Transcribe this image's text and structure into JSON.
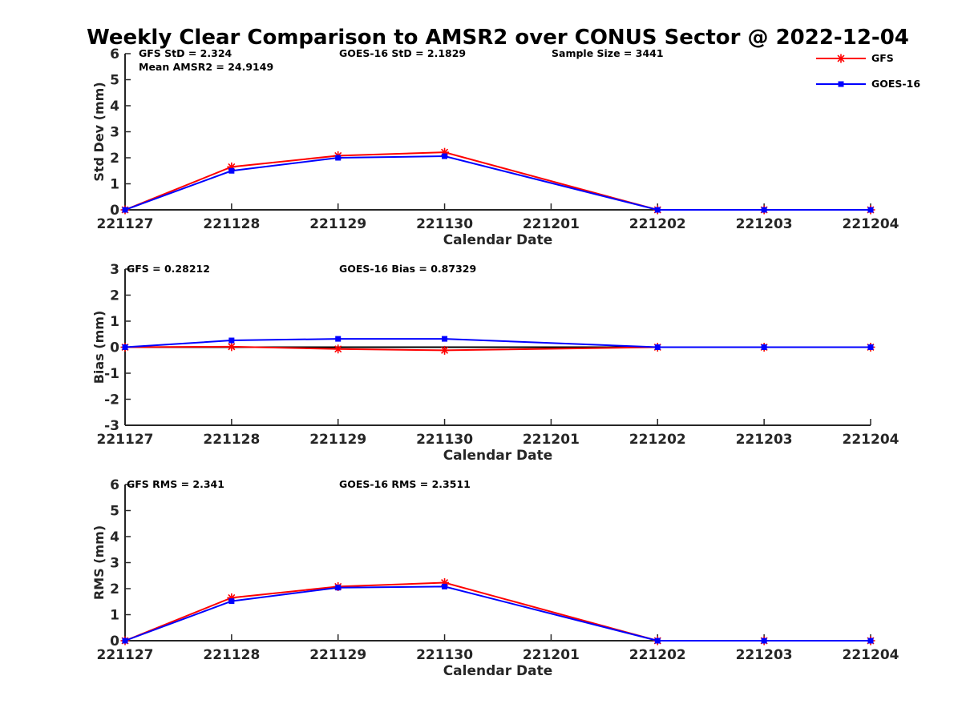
{
  "chart_data": {
    "title": "Weekly Clear Comparison to AMSR2 over CONUS Sector @ 2022-12-04",
    "x_tick_labels": [
      "221127",
      "221128",
      "221129",
      "221130",
      "221201",
      "221202",
      "221203",
      "221204"
    ],
    "legend": {
      "placement": "top-right",
      "entries": [
        {
          "name": "GFS",
          "color": "#ff0000",
          "marker": "asterisk"
        },
        {
          "name": "GOES-16",
          "color": "#0000ff",
          "marker": "square"
        }
      ]
    },
    "panels": [
      {
        "type": "line",
        "ylabel": "Std Dev (mm)",
        "xlabel": "Calendar Date",
        "ylim": [
          0,
          6
        ],
        "yticks": [
          0,
          1,
          2,
          3,
          4,
          5,
          6
        ],
        "zero_line": false,
        "annotations": {
          "gfs": "GFS StD = 2.324",
          "goes": "GOES-16 StD = 2.1829",
          "sample": "Sample Size = 3441",
          "mean": "Mean AMSR2 = 24.9149"
        },
        "series": [
          {
            "name": "GFS",
            "color": "#ff0000",
            "marker": "asterisk",
            "x": [
              0,
              1,
              2,
              3,
              5,
              6,
              7
            ],
            "values": [
              0,
              1.65,
              2.08,
              2.21,
              0,
              0,
              0
            ]
          },
          {
            "name": "GOES-16",
            "color": "#0000ff",
            "marker": "square",
            "x": [
              0,
              1,
              2,
              3,
              5,
              6,
              7
            ],
            "values": [
              0,
              1.5,
              2.0,
              2.06,
              0,
              0,
              0
            ]
          }
        ]
      },
      {
        "type": "line",
        "ylabel": "Bias (mm)",
        "xlabel": "Calendar Date",
        "ylim": [
          -3,
          3
        ],
        "yticks": [
          -3,
          -2,
          -1,
          0,
          1,
          2,
          3
        ],
        "zero_line": true,
        "annotations": {
          "gfs": "GFS = 0.28212",
          "goes": "GOES-16 Bias  = 0.87329"
        },
        "series": [
          {
            "name": "GFS",
            "color": "#ff0000",
            "marker": "asterisk",
            "x": [
              0,
              1,
              2,
              3,
              5,
              6,
              7
            ],
            "values": [
              0,
              0.02,
              -0.07,
              -0.12,
              0,
              0,
              0
            ]
          },
          {
            "name": "GOES-16",
            "color": "#0000ff",
            "marker": "square",
            "x": [
              0,
              1,
              2,
              3,
              5,
              6,
              7
            ],
            "values": [
              0,
              0.26,
              0.32,
              0.32,
              0,
              0,
              0
            ]
          }
        ]
      },
      {
        "type": "line",
        "ylabel": "RMS (mm)",
        "xlabel": "Calendar Date",
        "ylim": [
          0,
          6
        ],
        "yticks": [
          0,
          1,
          2,
          3,
          4,
          5,
          6
        ],
        "zero_line": false,
        "annotations": {
          "gfs": "GFS RMS = 2.341",
          "goes": "GOES-16 RMS = 2.3511"
        },
        "series": [
          {
            "name": "GFS",
            "color": "#ff0000",
            "marker": "asterisk",
            "x": [
              0,
              1,
              2,
              3,
              5,
              6,
              7
            ],
            "values": [
              0,
              1.65,
              2.08,
              2.23,
              0,
              0,
              0
            ]
          },
          {
            "name": "GOES-16",
            "color": "#0000ff",
            "marker": "square",
            "x": [
              0,
              1,
              2,
              3,
              5,
              6,
              7
            ],
            "values": [
              0,
              1.52,
              2.04,
              2.08,
              0,
              0,
              0
            ]
          }
        ]
      }
    ]
  }
}
